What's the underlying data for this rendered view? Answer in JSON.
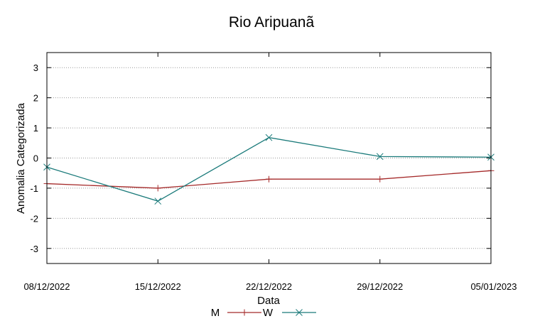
{
  "chart_data": {
    "type": "line",
    "title": "Rio Aripuanã",
    "xlabel": "Data",
    "ylabel": "Anomalia Categorizada",
    "categories": [
      "08/12/2022",
      "15/12/2022",
      "22/12/2022",
      "29/12/2022",
      "05/01/2023"
    ],
    "ylim": [
      -3.5,
      3.5
    ],
    "yticks": [
      -3,
      -2,
      -1,
      0,
      1,
      2,
      3
    ],
    "grid": "horizontal dotted",
    "legend_position": "bottom",
    "series": [
      {
        "name": "M",
        "values": [
          -0.85,
          -1.0,
          -0.7,
          -0.7,
          -0.42
        ],
        "color": "#a52a2a",
        "marker": "plus"
      },
      {
        "name": "W",
        "values": [
          -0.3,
          -1.43,
          0.68,
          0.05,
          0.03
        ],
        "color": "#1a7a7a",
        "marker": "cross"
      }
    ]
  }
}
